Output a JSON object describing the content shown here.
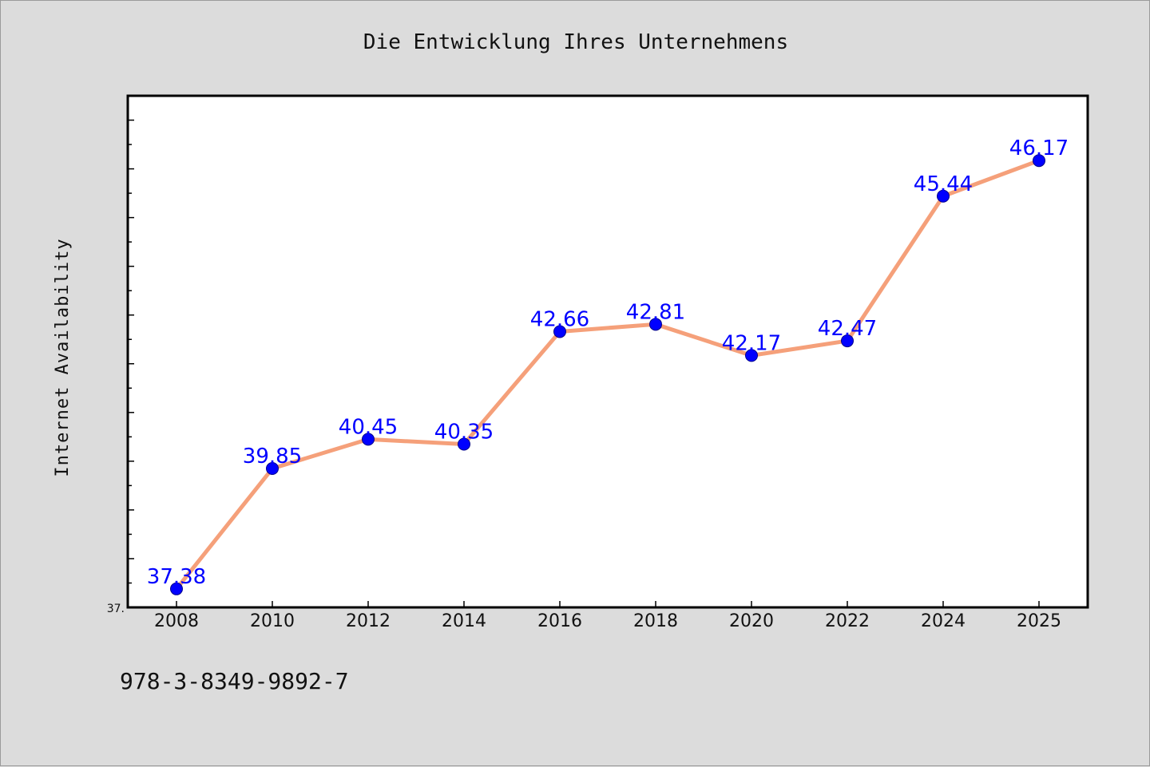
{
  "chart_data": {
    "type": "line",
    "title": "Die Entwicklung Ihres Unternehmens",
    "xlabel": "",
    "ylabel": "Internet Availability",
    "categories": [
      "2008",
      "2010",
      "2012",
      "2014",
      "2016",
      "2018",
      "2020",
      "2022",
      "2024",
      "2025"
    ],
    "series": [
      {
        "values": [
          37.38,
          39.85,
          40.45,
          40.35,
          42.66,
          42.81,
          42.17,
          42.47,
          45.44,
          46.17
        ],
        "labels": [
          "37.38",
          "39.85",
          "40.45",
          "40.35",
          "42.66",
          "42.81",
          "42.17",
          "42.47",
          "45.44",
          "46.17"
        ]
      }
    ],
    "ylim": [
      37.0,
      47.5
    ],
    "ytick_labels": [
      "37."
    ],
    "grid": false,
    "legend": "none",
    "line_color": "#f5a07a",
    "marker_color": "#0000ff",
    "label_color": "#0000ff"
  },
  "footer": {
    "isbn": "978-3-8349-9892-7"
  }
}
